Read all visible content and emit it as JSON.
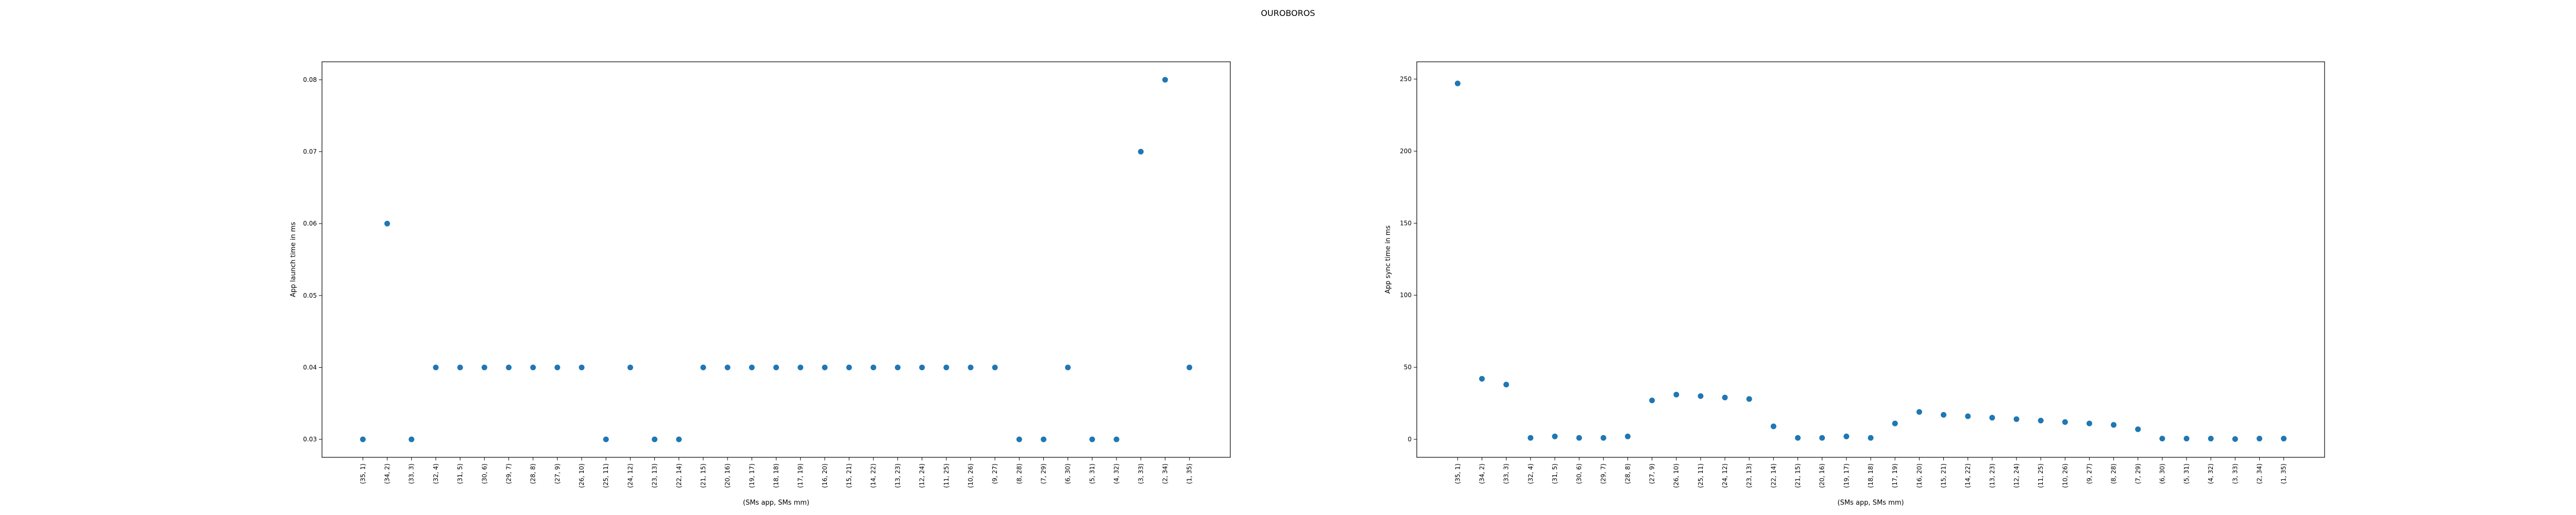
{
  "figure": {
    "title": "OUROBOROS"
  },
  "colors": {
    "point": "#1f77b4",
    "axis": "#000000"
  },
  "chart_data": [
    {
      "type": "scatter",
      "xlabel": "(SMs app, SMs mm)",
      "ylabel": "App launch time in ms",
      "ylim": [
        0.0275,
        0.0825
      ],
      "yticks": [
        0.03,
        0.04,
        0.05,
        0.06,
        0.07,
        0.08
      ],
      "ytick_labels": [
        "0.03",
        "0.04",
        "0.05",
        "0.06",
        "0.07",
        "0.08"
      ],
      "grid": false,
      "categories": [
        "(35, 1)",
        "(34, 2)",
        "(33, 3)",
        "(32, 4)",
        "(31, 5)",
        "(30, 6)",
        "(29, 7)",
        "(28, 8)",
        "(27, 9)",
        "(26, 10)",
        "(25, 11)",
        "(24, 12)",
        "(23, 13)",
        "(22, 14)",
        "(21, 15)",
        "(20, 16)",
        "(19, 17)",
        "(18, 18)",
        "(17, 19)",
        "(16, 20)",
        "(15, 21)",
        "(14, 22)",
        "(13, 23)",
        "(12, 24)",
        "(11, 25)",
        "(10, 26)",
        "(9, 27)",
        "(8, 28)",
        "(7, 29)",
        "(6, 30)",
        "(5, 31)",
        "(4, 32)",
        "(3, 33)",
        "(2, 34)",
        "(1, 35)"
      ],
      "values": [
        0.03,
        0.06,
        0.03,
        0.04,
        0.04,
        0.04,
        0.04,
        0.04,
        0.04,
        0.04,
        0.03,
        0.04,
        0.03,
        0.03,
        0.04,
        0.04,
        0.04,
        0.04,
        0.04,
        0.04,
        0.04,
        0.04,
        0.04,
        0.04,
        0.04,
        0.04,
        0.04,
        0.03,
        0.03,
        0.04,
        0.03,
        0.03,
        0.07,
        0.08,
        0.04
      ]
    },
    {
      "type": "scatter",
      "xlabel": "(SMs app, SMs mm)",
      "ylabel": "App sync time in ms",
      "ylim": [
        -12.5,
        262
      ],
      "yticks": [
        0,
        50,
        100,
        150,
        200,
        250
      ],
      "ytick_labels": [
        "0",
        "50",
        "100",
        "150",
        "200",
        "250"
      ],
      "grid": false,
      "categories": [
        "(35, 1)",
        "(34, 2)",
        "(33, 3)",
        "(32, 4)",
        "(31, 5)",
        "(30, 6)",
        "(29, 7)",
        "(28, 8)",
        "(27, 9)",
        "(26, 10)",
        "(25, 11)",
        "(24, 12)",
        "(23, 13)",
        "(22, 14)",
        "(21, 15)",
        "(20, 16)",
        "(19, 17)",
        "(18, 18)",
        "(17, 19)",
        "(16, 20)",
        "(15, 21)",
        "(14, 22)",
        "(13, 23)",
        "(12, 24)",
        "(11, 25)",
        "(10, 26)",
        "(9, 27)",
        "(8, 28)",
        "(7, 29)",
        "(6, 30)",
        "(5, 31)",
        "(4, 32)",
        "(3, 33)",
        "(2, 34)",
        "(1, 35)"
      ],
      "values": [
        247,
        42,
        38,
        1,
        2,
        1,
        1,
        2,
        27,
        31,
        30,
        29,
        28,
        9,
        1,
        1,
        2,
        1,
        11,
        19,
        17,
        16,
        15,
        14,
        13,
        12,
        11,
        10,
        7,
        0.5,
        0.5,
        0.5,
        0.2,
        0.5,
        0.5
      ]
    }
  ]
}
